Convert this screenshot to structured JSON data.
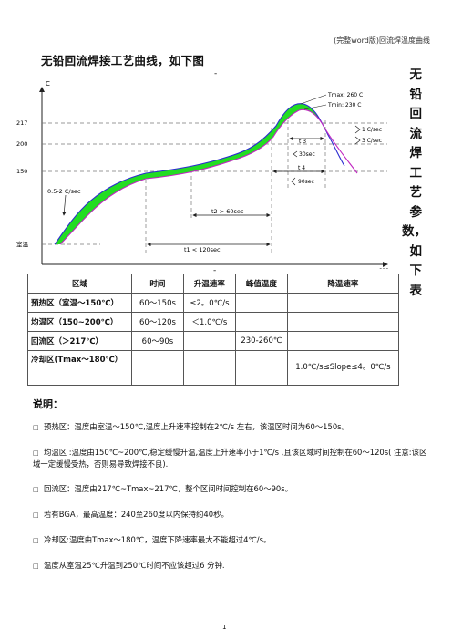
{
  "header": {
    "text": "(完整word版)回流焊温度曲线"
  },
  "title": "无铅回流焊接工艺曲线，如下图",
  "dash": "-",
  "side_text": [
    "无",
    "铅回",
    "流焊",
    "工艺",
    "参",
    "数，",
    "如下",
    "表"
  ],
  "chart": {
    "y_unit": "C",
    "x_unit": "sec",
    "y_ticks": [
      "217",
      "200",
      "150",
      "室温"
    ],
    "ramp_label": "0.5-2 C/sec",
    "tmax_label": "Tmax: 260 C",
    "tmin_label": "Tmin: 230 C",
    "cool1_label": "1 C/sec",
    "cool3_label": "3 C/sec",
    "t3_label": "t 3",
    "t3_value": "30sec",
    "t4_label": "t 4",
    "t4_value": "90sec",
    "t2_label": "t2 > 60sec",
    "t1_label": "t1 < 120sec",
    "colors": {
      "band": "#22dd22",
      "curve_top": "#2b2bd0",
      "curve_bottom": "#c026c0",
      "line": "#222222"
    }
  },
  "table": {
    "headers": [
      "区域",
      "时间",
      "升温速率",
      "峰值温度",
      "降温速率"
    ],
    "rows": [
      [
        "预热区（室温～150℃）",
        "60～150s",
        "≤2。0℃/s",
        "",
        ""
      ],
      [
        "均温区（150~200℃）",
        "60～120s",
        "＜1.0℃/s",
        "",
        ""
      ],
      [
        "回流区（＞217℃）",
        "60～90s",
        "",
        "230-260℃",
        ""
      ],
      [
        "冷却区(Tmax～180℃）",
        "",
        "",
        "",
        "1.0℃/s≤Slope≤4。0℃/s"
      ]
    ]
  },
  "notes_title": "说明：",
  "bullet": "□",
  "notes": [
    "预热区：温度由室温～150℃,温度上升速率控制在2℃/s 左右，该温区时间为60～150s。",
    "均温区 :温度由150℃~200℃,稳定缓慢升温,温度上升速率小于1℃/s ,且该区域时间控制在60～120s( 注意:该区域一定缓慢受热，否则易导致焊接不良).",
    "回流区：温度由217℃~Tmax~217℃，整个区间时间控制在60～90s。",
    "若有BGA，最高温度：240至260度以内保持约40秒。",
    "冷却区:温度由Tmax～180℃，温度下降速率最大不能超过4℃/s。",
    "温度从室温25℃升温到250℃时间不应该超过6 分钟."
  ],
  "page_number": "1"
}
